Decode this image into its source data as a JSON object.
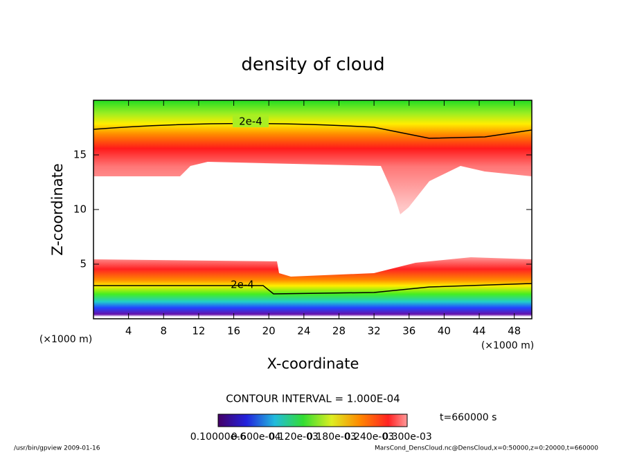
{
  "chart_data": {
    "type": "contour",
    "title": "density of cloud",
    "xlabel": "X-coordinate",
    "ylabel": "Z-coordinate",
    "x_unit": "(×1000 m)",
    "y_unit": "(×1000 m)",
    "xlim": [
      0,
      50
    ],
    "xticks": [
      4,
      8,
      12,
      16,
      20,
      24,
      28,
      32,
      36,
      40,
      44,
      48
    ],
    "ylim": [
      0,
      20
    ],
    "yticks": [
      5,
      10,
      15
    ],
    "contour_labels": [
      "2e-4",
      "2e-4"
    ],
    "contour_interval": "CONTOUR INTERVAL = 1.000E-04",
    "time_label": "t=660000 s",
    "colorbar_labels": [
      "0.10000e-6",
      "0.600e-04",
      "0.120e-03",
      "0.180e-03",
      "0.240e-03",
      "0.300e-03"
    ],
    "footer_left": "/usr/bin/gpview   2009-01-16",
    "footer_right": "MarsCond_DensCloud.nc@DensCloud,x=0:50000,z=0:20000,t=660000"
  }
}
